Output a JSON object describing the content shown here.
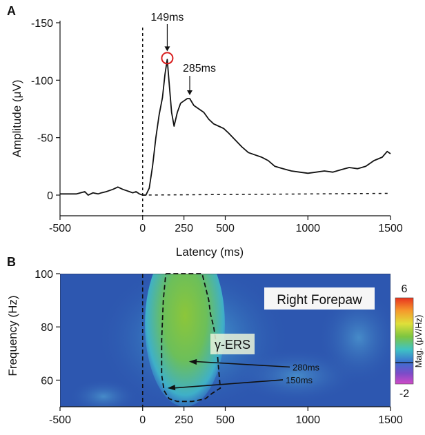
{
  "panel_a": {
    "label": "A",
    "peak1_label": "149ms",
    "peak2_label": "285ms"
  },
  "panel_b": {
    "label": "B",
    "title_box": "Right Forepaw",
    "region_label": "γ-ERS",
    "arrow1_label": "280ms",
    "arrow2_label": "150ms",
    "colorbar": {
      "max_label": "6",
      "min_label": "-2",
      "label": "Mag. (μV/Hz)"
    }
  },
  "colors": {
    "line": "#111111",
    "peak_circle": "#d81e1e",
    "heatmap_bg": "#2d57b0",
    "hot": "#7cc23a"
  },
  "chart_data": [
    {
      "type": "line",
      "xlabel": "Latency (ms)",
      "ylabel": "Amplitude (μV)",
      "xlim": [
        -500,
        1500
      ],
      "ylim": [
        -150,
        0
      ],
      "y_inverted": true,
      "xticks": [
        -500,
        0,
        250,
        500,
        1000,
        1500
      ],
      "yticks": [
        -150,
        -100,
        -50,
        0
      ],
      "tick_labels_x": [
        "-500",
        "0",
        "250",
        "500",
        "1000",
        "1500"
      ],
      "tick_labels_y": [
        "-150",
        "-100",
        "-50",
        "0"
      ],
      "annotations": [
        "149ms",
        "285ms"
      ],
      "series": [
        {
          "x": [
            -500,
            -450,
            -400,
            -350,
            -330,
            -300,
            -270,
            -250,
            -220,
            -200,
            -180,
            -150,
            -120,
            -100,
            -80,
            -60,
            -40,
            -20,
            0,
            20,
            40,
            60,
            80,
            100,
            120,
            135,
            149,
            160,
            175,
            190,
            210,
            230,
            250,
            270,
            285,
            310,
            340,
            370,
            400,
            430,
            460,
            490,
            520,
            560,
            600,
            640,
            680,
            720,
            760,
            800,
            850,
            900,
            950,
            1000,
            1050,
            1100,
            1150,
            1200,
            1250,
            1300,
            1350,
            1400,
            1450,
            1480,
            1500
          ],
          "y": [
            -1,
            -1,
            -1,
            -3,
            0,
            -2,
            -1,
            -2,
            -3,
            -4,
            -5,
            -7,
            -5,
            -4,
            -3,
            -2,
            -3,
            -1,
            0,
            0,
            -6,
            -25,
            -50,
            -70,
            -85,
            -105,
            -118,
            -98,
            -72,
            -60,
            -72,
            -80,
            -82,
            -84,
            -84,
            -78,
            -75,
            -72,
            -66,
            -62,
            -60,
            -58,
            -54,
            -48,
            -42,
            -37,
            -35,
            -33,
            -30,
            -25,
            -23,
            -21,
            -20,
            -19,
            -20,
            -21,
            -20,
            -22,
            -24,
            -23,
            -25,
            -30,
            -33,
            -38,
            -36
          ]
        }
      ]
    },
    {
      "type": "heatmap",
      "xlabel": "",
      "ylabel": "Frequency (Hz)",
      "xlim": [
        -500,
        1500
      ],
      "ylim": [
        50,
        100
      ],
      "xticks": [
        -500,
        0,
        250,
        500,
        1000,
        1500
      ],
      "yticks": [
        60,
        80,
        100
      ],
      "tick_labels_x": [
        "-500",
        "0",
        "250",
        "500",
        "1000",
        "1500"
      ],
      "tick_labels_y": [
        "60",
        "80",
        "100"
      ],
      "colorbar_range": [
        -2,
        6
      ],
      "annotations": [
        "Right Forepaw",
        "γ-ERS",
        "280ms",
        "150ms"
      ],
      "arrows": [
        {
          "label": "280ms",
          "target": [
            280,
            67
          ]
        },
        {
          "label": "150ms",
          "target": [
            150,
            57
          ]
        }
      ],
      "contour": {
        "x": [
          140,
          170,
          200,
          240,
          280,
          320,
          360,
          380,
          400,
          410,
          430,
          450,
          460,
          470,
          420,
          380,
          300,
          260,
          210,
          160,
          130,
          115,
          115,
          125,
          140
        ],
        "y": [
          100,
          100,
          100,
          100,
          100,
          100,
          100,
          95,
          90,
          85,
          80,
          72,
          64,
          57,
          55,
          53,
          52,
          52,
          52,
          53,
          56,
          62,
          75,
          90,
          100
        ]
      }
    }
  ]
}
